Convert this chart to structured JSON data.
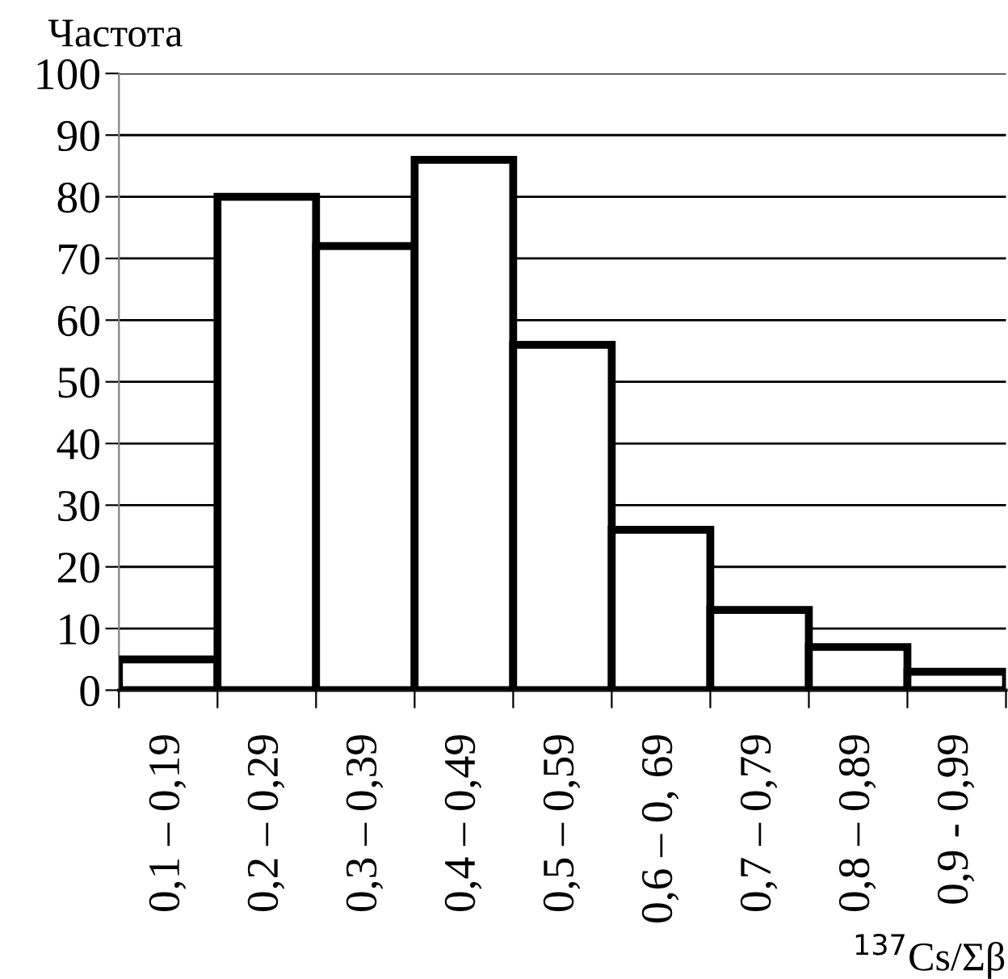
{
  "chart_data": {
    "type": "bar",
    "categories": [
      "0,1 – 0,19",
      "0,2 – 0,29",
      "0,3 – 0,39",
      "0,4 – 0,49",
      "0,5 – 0,59",
      "0,6 – 0, 69",
      "0,7 – 0,79",
      "0,8 – 0,89",
      "0,9 - 0,99"
    ],
    "values": [
      5,
      80,
      72,
      86,
      56,
      26,
      13,
      7,
      3
    ],
    "color": "#ffffff",
    "ylabel": "Частота",
    "xlabel": "$^{137}$Cs/Σβ",
    "ylim": [
      0,
      100
    ],
    "yticks": [
      0,
      10,
      20,
      30,
      40,
      50,
      60,
      70,
      80,
      90,
      100
    ],
    "grid": "y"
  }
}
